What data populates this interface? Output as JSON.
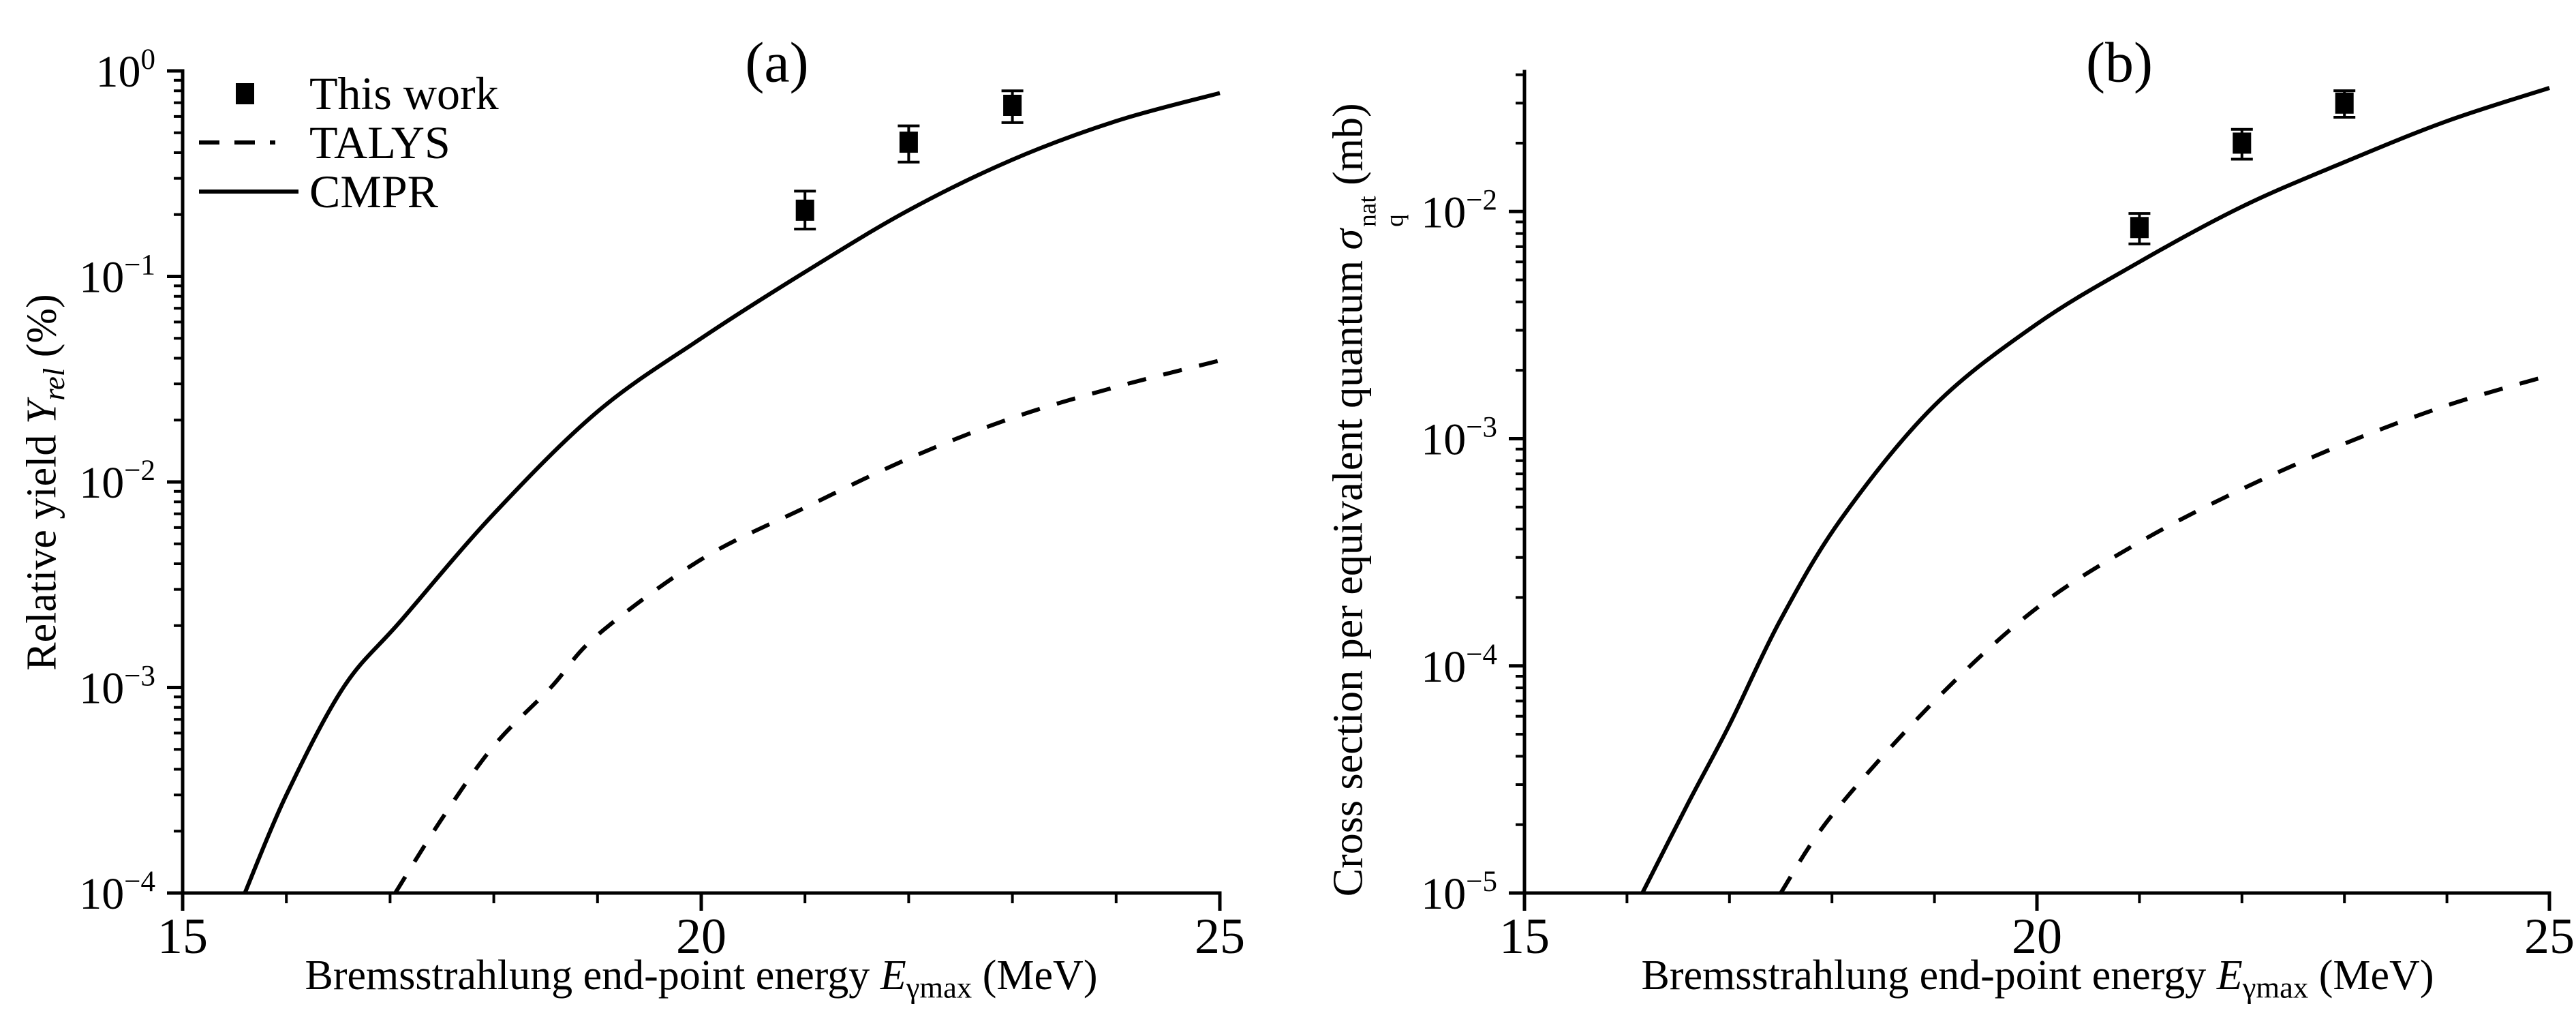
{
  "page": {
    "background": "#ffffff",
    "ink": "#000000"
  },
  "legend": {
    "items": [
      {
        "label": "This work",
        "marker": "filled-square"
      },
      {
        "label": "TALYS",
        "marker": "dashed-line"
      },
      {
        "label": "CMPR",
        "marker": "solid-line"
      }
    ]
  },
  "chart_data": [
    {
      "type": "line",
      "panel_label": "(a)",
      "title": "(a)",
      "xlabel_parts": {
        "prefix": "Bremsstrahlung end-point energy ",
        "var": "E",
        "sub": "γmax",
        "suffix": " (MeV)"
      },
      "ylabel_parts": {
        "prefix": "Relative yield ",
        "var": "Y",
        "sub": "rel",
        "suffix": " (%)"
      },
      "xlim": [
        15,
        25
      ],
      "x_major_ticks": [
        15,
        20,
        25
      ],
      "x_minor_ticks": [
        16,
        17,
        18,
        19,
        21,
        22,
        23,
        24
      ],
      "y_scale": "log",
      "ylim": [
        0.0001,
        1.0
      ],
      "y_decade_exponents": [
        0,
        -1,
        -2,
        -3,
        -4
      ],
      "grid": false,
      "legend_position": "upper-left-inside",
      "series": [
        {
          "name": "This work",
          "plot": "scatter",
          "marker": "filled-square",
          "x": [
            21,
            22,
            23
          ],
          "y": [
            0.21,
            0.45,
            0.68
          ],
          "yerr_plus": [
            0.05,
            0.09,
            0.12
          ],
          "yerr_minus": [
            0.04,
            0.09,
            0.12
          ]
        },
        {
          "name": "TALYS",
          "plot": "line",
          "line_style": "dashed",
          "points": [
            [
              17.05,
              0.0001
            ],
            [
              17.5,
              0.00023
            ],
            [
              18,
              0.00052
            ],
            [
              18.55,
              0.001
            ],
            [
              19,
              0.0018
            ],
            [
              20,
              0.0042
            ],
            [
              21,
              0.0075
            ],
            [
              22,
              0.013
            ],
            [
              23,
              0.0205
            ],
            [
              24,
              0.029
            ],
            [
              25,
              0.039
            ]
          ]
        },
        {
          "name": "CMPR",
          "plot": "line",
          "line_style": "solid",
          "points": [
            [
              15.6,
              0.0001
            ],
            [
              16,
              0.0003
            ],
            [
              16.55,
              0.001
            ],
            [
              17.1,
              0.0021
            ],
            [
              18,
              0.007
            ],
            [
              19,
              0.022
            ],
            [
              20,
              0.05
            ],
            [
              21,
              0.105
            ],
            [
              22,
              0.21
            ],
            [
              23,
              0.37
            ],
            [
              24,
              0.57
            ],
            [
              25,
              0.78
            ]
          ]
        }
      ]
    },
    {
      "type": "line",
      "panel_label": "(b)",
      "title": "(b)",
      "xlabel_parts": {
        "prefix": "Bremsstrahlung end-point energy ",
        "var": "E",
        "sub": "γmax",
        "suffix": " (MeV)"
      },
      "ylabel_parts": {
        "prefix": "Cross section per equivalent quantum ",
        "var": "σ",
        "sub": "q",
        "sup": "nat",
        "suffix": " (mb)"
      },
      "xlim": [
        15,
        25
      ],
      "x_major_ticks": [
        15,
        20,
        25
      ],
      "x_minor_ticks": [
        16,
        17,
        18,
        19,
        21,
        22,
        23,
        24
      ],
      "y_scale": "log",
      "ylim": [
        1e-05,
        0.0413
      ],
      "y_decade_exponents": [
        -2,
        -3,
        -4,
        -5
      ],
      "grid": false,
      "legend_position": "none",
      "series": [
        {
          "name": "This work",
          "plot": "scatter",
          "marker": "filled-square",
          "x": [
            21,
            22,
            23
          ],
          "y": [
            0.0085,
            0.02,
            0.03
          ],
          "yerr_plus": [
            0.0013,
            0.003,
            0.004
          ],
          "yerr_minus": [
            0.0013,
            0.003,
            0.004
          ]
        },
        {
          "name": "TALYS",
          "plot": "line",
          "line_style": "dashed",
          "points": [
            [
              17.5,
              1e-05
            ],
            [
              18,
              2.2e-05
            ],
            [
              19,
              7e-05
            ],
            [
              20,
              0.00018
            ],
            [
              21,
              0.00035
            ],
            [
              22,
              0.0006
            ],
            [
              23,
              0.00095
            ],
            [
              24,
              0.0014
            ],
            [
              25,
              0.0019
            ]
          ]
        },
        {
          "name": "CMPR",
          "plot": "line",
          "line_style": "solid",
          "points": [
            [
              16.15,
              1e-05
            ],
            [
              16.6,
              2.5e-05
            ],
            [
              17,
              5.5e-05
            ],
            [
              17.5,
              0.00016
            ],
            [
              18.1,
              0.00045
            ],
            [
              19,
              0.0014
            ],
            [
              20,
              0.0032
            ],
            [
              21,
              0.006
            ],
            [
              22,
              0.0105
            ],
            [
              23,
              0.0165
            ],
            [
              24,
              0.025
            ],
            [
              25,
              0.035
            ]
          ]
        }
      ]
    }
  ]
}
